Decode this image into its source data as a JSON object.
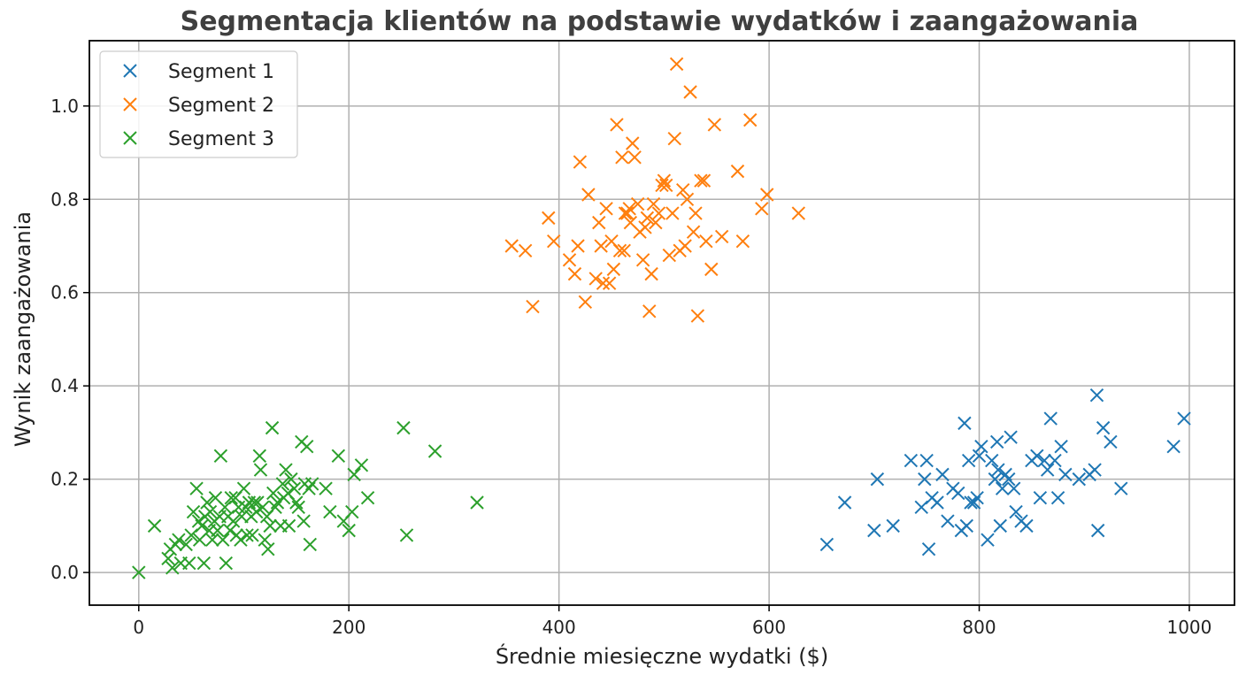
{
  "chart_data": {
    "type": "scatter",
    "title": "Segmentacja klientów na podstawie wydatków i zaangażowania",
    "xlabel": "Średnie miesięczne wydatki ($)",
    "ylabel": "Wynik zaangażowania",
    "xlim": [
      -47,
      1043
    ],
    "ylim": [
      -0.07,
      1.14
    ],
    "xticks": [
      0,
      200,
      400,
      600,
      800,
      1000
    ],
    "xtick_labels": [
      "0",
      "200",
      "400",
      "600",
      "800",
      "1000"
    ],
    "yticks": [
      0.0,
      0.2,
      0.4,
      0.6,
      0.8,
      1.0
    ],
    "ytick_labels": [
      "0.0",
      "0.2",
      "0.4",
      "0.6",
      "0.8",
      "1.0"
    ],
    "grid": true,
    "legend_position": "upper-left",
    "marker": "x",
    "series": [
      {
        "name": "Segment 1",
        "color": "#1f77b4",
        "points": [
          [
            655,
            0.06
          ],
          [
            672,
            0.15
          ],
          [
            700,
            0.09
          ],
          [
            703,
            0.2
          ],
          [
            718,
            0.1
          ],
          [
            735,
            0.24
          ],
          [
            745,
            0.14
          ],
          [
            748,
            0.2
          ],
          [
            750,
            0.24
          ],
          [
            752,
            0.05
          ],
          [
            755,
            0.16
          ],
          [
            760,
            0.15
          ],
          [
            765,
            0.21
          ],
          [
            770,
            0.11
          ],
          [
            775,
            0.18
          ],
          [
            780,
            0.17
          ],
          [
            783,
            0.09
          ],
          [
            786,
            0.32
          ],
          [
            788,
            0.1
          ],
          [
            790,
            0.24
          ],
          [
            792,
            0.15
          ],
          [
            795,
            0.15
          ],
          [
            798,
            0.16
          ],
          [
            800,
            0.25
          ],
          [
            802,
            0.27
          ],
          [
            808,
            0.07
          ],
          [
            812,
            0.24
          ],
          [
            815,
            0.2
          ],
          [
            817,
            0.28
          ],
          [
            818,
            0.22
          ],
          [
            820,
            0.1
          ],
          [
            822,
            0.18
          ],
          [
            825,
            0.21
          ],
          [
            828,
            0.2
          ],
          [
            830,
            0.29
          ],
          [
            833,
            0.18
          ],
          [
            835,
            0.13
          ],
          [
            840,
            0.11
          ],
          [
            845,
            0.1
          ],
          [
            850,
            0.24
          ],
          [
            855,
            0.25
          ],
          [
            858,
            0.16
          ],
          [
            862,
            0.24
          ],
          [
            865,
            0.22
          ],
          [
            868,
            0.33
          ],
          [
            872,
            0.24
          ],
          [
            875,
            0.16
          ],
          [
            878,
            0.27
          ],
          [
            882,
            0.21
          ],
          [
            895,
            0.2
          ],
          [
            905,
            0.21
          ],
          [
            910,
            0.22
          ],
          [
            912,
            0.38
          ],
          [
            913,
            0.09
          ],
          [
            918,
            0.31
          ],
          [
            925,
            0.28
          ],
          [
            935,
            0.18
          ],
          [
            985,
            0.27
          ],
          [
            995,
            0.33
          ]
        ]
      },
      {
        "name": "Segment 2",
        "color": "#ff7f0e",
        "points": [
          [
            355,
            0.7
          ],
          [
            368,
            0.69
          ],
          [
            375,
            0.57
          ],
          [
            390,
            0.76
          ],
          [
            395,
            0.71
          ],
          [
            410,
            0.67
          ],
          [
            415,
            0.64
          ],
          [
            418,
            0.7
          ],
          [
            420,
            0.88
          ],
          [
            425,
            0.58
          ],
          [
            428,
            0.81
          ],
          [
            435,
            0.63
          ],
          [
            438,
            0.75
          ],
          [
            440,
            0.7
          ],
          [
            442,
            0.62
          ],
          [
            445,
            0.78
          ],
          [
            448,
            0.62
          ],
          [
            450,
            0.71
          ],
          [
            452,
            0.65
          ],
          [
            455,
            0.96
          ],
          [
            458,
            0.69
          ],
          [
            460,
            0.89
          ],
          [
            462,
            0.69
          ],
          [
            463,
            0.77
          ],
          [
            465,
            0.77
          ],
          [
            467,
            0.78
          ],
          [
            468,
            0.75
          ],
          [
            470,
            0.92
          ],
          [
            472,
            0.89
          ],
          [
            475,
            0.79
          ],
          [
            477,
            0.73
          ],
          [
            480,
            0.67
          ],
          [
            482,
            0.74
          ],
          [
            484,
            0.76
          ],
          [
            486,
            0.56
          ],
          [
            488,
            0.64
          ],
          [
            490,
            0.79
          ],
          [
            492,
            0.75
          ],
          [
            495,
            0.77
          ],
          [
            498,
            0.83
          ],
          [
            500,
            0.84
          ],
          [
            502,
            0.83
          ],
          [
            505,
            0.68
          ],
          [
            508,
            0.77
          ],
          [
            510,
            0.93
          ],
          [
            512,
            1.09
          ],
          [
            515,
            0.69
          ],
          [
            518,
            0.82
          ],
          [
            520,
            0.7
          ],
          [
            522,
            0.8
          ],
          [
            525,
            1.03
          ],
          [
            528,
            0.73
          ],
          [
            530,
            0.77
          ],
          [
            532,
            0.55
          ],
          [
            535,
            0.84
          ],
          [
            538,
            0.84
          ],
          [
            540,
            0.71
          ],
          [
            545,
            0.65
          ],
          [
            548,
            0.96
          ],
          [
            555,
            0.72
          ],
          [
            570,
            0.86
          ],
          [
            575,
            0.71
          ],
          [
            582,
            0.97
          ],
          [
            593,
            0.78
          ],
          [
            598,
            0.81
          ],
          [
            628,
            0.77
          ]
        ]
      },
      {
        "name": "Segment 3",
        "color": "#2ca02c",
        "points": [
          [
            0,
            0.0
          ],
          [
            15,
            0.1
          ],
          [
            28,
            0.03
          ],
          [
            30,
            0.05
          ],
          [
            32,
            0.01
          ],
          [
            35,
            0.06
          ],
          [
            38,
            0.07
          ],
          [
            40,
            0.02
          ],
          [
            45,
            0.06
          ],
          [
            48,
            0.02
          ],
          [
            50,
            0.08
          ],
          [
            52,
            0.13
          ],
          [
            55,
            0.18
          ],
          [
            57,
            0.11
          ],
          [
            58,
            0.07
          ],
          [
            60,
            0.1
          ],
          [
            62,
            0.02
          ],
          [
            63,
            0.12
          ],
          [
            65,
            0.15
          ],
          [
            67,
            0.09
          ],
          [
            68,
            0.13
          ],
          [
            70,
            0.07
          ],
          [
            72,
            0.11
          ],
          [
            73,
            0.16
          ],
          [
            75,
            0.09
          ],
          [
            77,
            0.12
          ],
          [
            78,
            0.25
          ],
          [
            80,
            0.07
          ],
          [
            82,
            0.14
          ],
          [
            83,
            0.02
          ],
          [
            85,
            0.12
          ],
          [
            87,
            0.09
          ],
          [
            88,
            0.16
          ],
          [
            90,
            0.11
          ],
          [
            92,
            0.16
          ],
          [
            93,
            0.08
          ],
          [
            95,
            0.14
          ],
          [
            97,
            0.07
          ],
          [
            98,
            0.12
          ],
          [
            100,
            0.18
          ],
          [
            102,
            0.14
          ],
          [
            103,
            0.08
          ],
          [
            105,
            0.15
          ],
          [
            107,
            0.12
          ],
          [
            108,
            0.08
          ],
          [
            110,
            0.15
          ],
          [
            112,
            0.13
          ],
          [
            113,
            0.15
          ],
          [
            115,
            0.25
          ],
          [
            116,
            0.22
          ],
          [
            118,
            0.14
          ],
          [
            120,
            0.07
          ],
          [
            122,
            0.12
          ],
          [
            123,
            0.05
          ],
          [
            125,
            0.1
          ],
          [
            127,
            0.31
          ],
          [
            128,
            0.17
          ],
          [
            130,
            0.14
          ],
          [
            132,
            0.15
          ],
          [
            135,
            0.1
          ],
          [
            137,
            0.19
          ],
          [
            138,
            0.16
          ],
          [
            140,
            0.22
          ],
          [
            142,
            0.17
          ],
          [
            143,
            0.1
          ],
          [
            145,
            0.2
          ],
          [
            148,
            0.18
          ],
          [
            150,
            0.15
          ],
          [
            152,
            0.14
          ],
          [
            155,
            0.28
          ],
          [
            157,
            0.11
          ],
          [
            158,
            0.19
          ],
          [
            160,
            0.27
          ],
          [
            162,
            0.18
          ],
          [
            163,
            0.06
          ],
          [
            165,
            0.19
          ],
          [
            178,
            0.18
          ],
          [
            182,
            0.13
          ],
          [
            190,
            0.25
          ],
          [
            195,
            0.11
          ],
          [
            200,
            0.09
          ],
          [
            203,
            0.13
          ],
          [
            205,
            0.21
          ],
          [
            212,
            0.23
          ],
          [
            218,
            0.16
          ],
          [
            252,
            0.31
          ],
          [
            255,
            0.08
          ],
          [
            282,
            0.26
          ],
          [
            322,
            0.15
          ]
        ]
      }
    ]
  }
}
